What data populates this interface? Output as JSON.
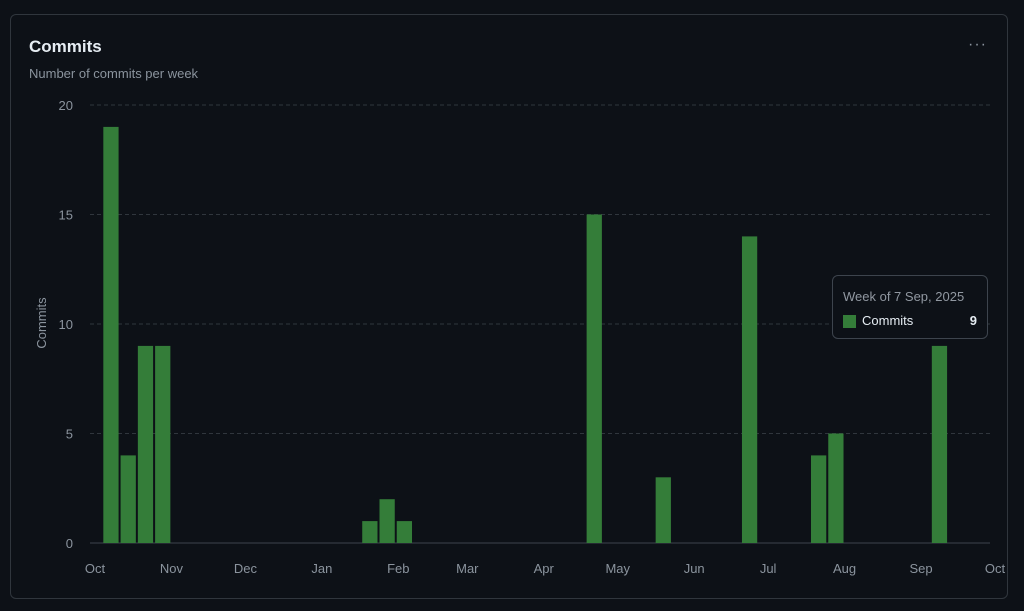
{
  "header": {
    "title": "Commits",
    "subtitle": "Number of commits per week",
    "menu_icon": "kebab-horizontal-icon",
    "menu_label": "···"
  },
  "tooltip": {
    "title": "Week of 7 Sep, 2025",
    "series_label": "Commits",
    "value": "9"
  },
  "colors": {
    "bar": "#347d39",
    "grid": "#30363d",
    "axis_text": "#8b949e",
    "background": "#0d1117"
  },
  "chart_data": {
    "type": "bar",
    "title": "Commits",
    "subtitle": "Number of commits per week",
    "xlabel": "",
    "ylabel": "Commits",
    "ylim": [
      0,
      20
    ],
    "yticks": [
      0,
      5,
      10,
      15,
      20
    ],
    "grid": true,
    "legend": "none",
    "xticks": [
      "Oct",
      "Nov",
      "Dec",
      "Jan",
      "Feb",
      "Mar",
      "Apr",
      "May",
      "Jun",
      "Jul",
      "Aug",
      "Sep",
      "Oct"
    ],
    "series": [
      {
        "name": "Commits",
        "points": [
          {
            "week": "2024-10-06",
            "value": 19
          },
          {
            "week": "2024-10-13",
            "value": 4
          },
          {
            "week": "2024-10-20",
            "value": 9
          },
          {
            "week": "2024-10-27",
            "value": 9
          },
          {
            "week": "2025-01-19",
            "value": 1
          },
          {
            "week": "2025-01-26",
            "value": 2
          },
          {
            "week": "2025-02-02",
            "value": 1
          },
          {
            "week": "2025-04-20",
            "value": 15
          },
          {
            "week": "2025-05-18",
            "value": 3
          },
          {
            "week": "2025-06-22",
            "value": 14
          },
          {
            "week": "2025-07-20",
            "value": 4
          },
          {
            "week": "2025-07-27",
            "value": 5
          },
          {
            "week": "2025-09-07",
            "value": 9
          }
        ]
      }
    ]
  }
}
